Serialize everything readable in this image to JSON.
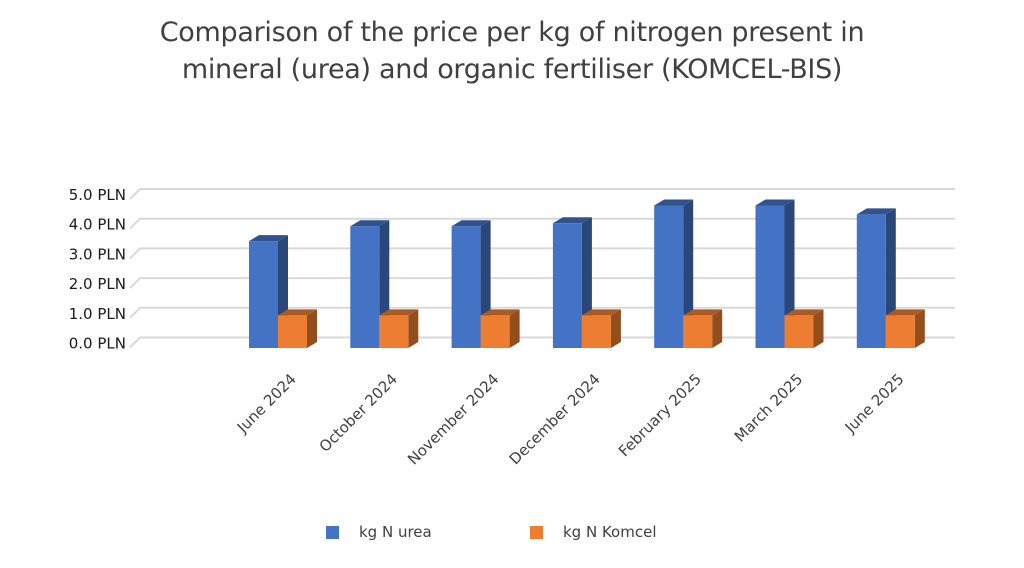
{
  "chart_data": {
    "type": "bar",
    "style": "3d-clustered-column",
    "title": "Comparison of the price per kg of nitrogen present in mineral (urea) and organic fertiliser (KOMCEL-BIS)",
    "title_lines": [
      "Comparison of the price per kg of nitrogen present in",
      "mineral (urea) and organic fertiliser (KOMCEL-BIS)"
    ],
    "xlabel": "",
    "ylabel": "",
    "categories": [
      "June 2024",
      "October 2024",
      "November 2024",
      "December 2024",
      "February 2025",
      "March 2025",
      "June 2025"
    ],
    "series": [
      {
        "name": "kg N urea",
        "color": "#4472C4",
        "values": [
          3.6,
          4.1,
          4.1,
          4.2,
          4.8,
          4.8,
          4.5
        ]
      },
      {
        "name": "kg N Komcel",
        "color": "#ED7D31",
        "values": [
          1.1,
          1.1,
          1.1,
          1.1,
          1.1,
          1.1,
          1.1
        ]
      }
    ],
    "ylim": [
      0,
      5
    ],
    "yticks": [
      0,
      1,
      2,
      3,
      4,
      5
    ],
    "ytick_labels": [
      "0.0 PLN",
      "1.0 PLN",
      "2.0 PLN",
      "3.0 PLN",
      "4.0 PLN",
      "5.0 PLN"
    ],
    "grid": true,
    "legend_position": "bottom"
  }
}
